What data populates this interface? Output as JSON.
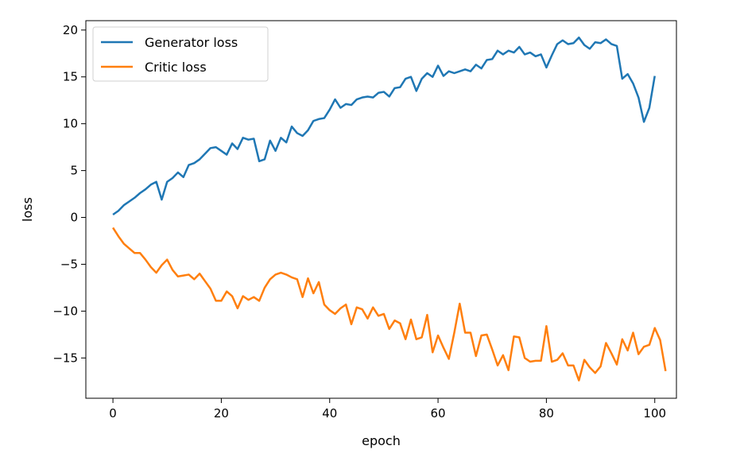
{
  "chart_data": {
    "type": "line",
    "xlabel": "epoch",
    "ylabel": "loss",
    "xlim": [
      -5,
      104
    ],
    "ylim": [
      -19.3,
      21
    ],
    "xticks": [
      0,
      20,
      40,
      60,
      80,
      100
    ],
    "yticks": [
      20,
      15,
      10,
      5,
      0,
      -5,
      -10,
      -15
    ],
    "xtick_labels": [
      "0",
      "20",
      "40",
      "60",
      "80",
      "100"
    ],
    "ytick_labels": [
      "20",
      "15",
      "10",
      "5",
      "0",
      "−5",
      "−10",
      "−15"
    ],
    "grid": false,
    "legend_position": "top-left",
    "series": [
      {
        "name": "Generator loss",
        "color": "#1f77b4",
        "values": [
          0.3,
          0.7,
          1.3,
          1.7,
          2.1,
          2.6,
          3.0,
          3.5,
          3.8,
          1.9,
          3.8,
          4.2,
          4.8,
          4.3,
          5.6,
          5.8,
          6.2,
          6.8,
          7.4,
          7.5,
          7.1,
          6.7,
          7.9,
          7.3,
          8.5,
          8.3,
          8.4,
          6.0,
          6.2,
          8.2,
          7.1,
          8.5,
          8.0,
          9.7,
          9.0,
          8.7,
          9.3,
          10.3,
          10.5,
          10.6,
          11.5,
          12.6,
          11.7,
          12.1,
          12.0,
          12.6,
          12.8,
          12.9,
          12.8,
          13.3,
          13.4,
          12.9,
          13.8,
          13.9,
          14.8,
          15.0,
          13.5,
          14.8,
          15.4,
          15.0,
          16.2,
          15.1,
          15.6,
          15.4,
          15.6,
          15.8,
          15.6,
          16.3,
          15.9,
          16.8,
          16.9,
          17.8,
          17.4,
          17.8,
          17.6,
          18.2,
          17.4,
          17.6,
          17.2,
          17.4,
          16.0,
          17.3,
          18.5,
          18.9,
          18.5,
          18.6,
          19.2,
          18.4,
          18.0,
          18.7,
          18.6,
          19.0,
          18.5,
          18.3,
          14.8,
          15.3,
          14.3,
          12.8,
          10.2,
          11.7,
          15.1
        ]
      },
      {
        "name": "Critic loss",
        "color": "#ff7f0e",
        "values": [
          -1.1,
          -2.0,
          -2.8,
          -3.3,
          -3.8,
          -3.8,
          -4.5,
          -5.3,
          -5.9,
          -5.1,
          -4.5,
          -5.6,
          -6.3,
          -6.2,
          -6.1,
          -6.6,
          -6.0,
          -6.8,
          -7.6,
          -8.9,
          -8.9,
          -7.9,
          -8.4,
          -9.7,
          -8.4,
          -8.8,
          -8.5,
          -8.9,
          -7.5,
          -6.6,
          -6.1,
          -5.9,
          -6.1,
          -6.4,
          -6.6,
          -8.5,
          -6.5,
          -8.1,
          -6.9,
          -9.3,
          -9.9,
          -10.3,
          -9.7,
          -9.3,
          -11.4,
          -9.6,
          -9.8,
          -10.8,
          -9.6,
          -10.5,
          -10.3,
          -11.9,
          -11.0,
          -11.3,
          -13.0,
          -10.9,
          -13.0,
          -12.8,
          -10.4,
          -14.4,
          -12.6,
          -13.9,
          -15.1,
          -12.3,
          -9.2,
          -12.3,
          -12.3,
          -14.8,
          -12.6,
          -12.5,
          -14.1,
          -15.8,
          -14.7,
          -16.3,
          -12.7,
          -12.8,
          -15.0,
          -15.4,
          -15.3,
          -15.3,
          -11.6,
          -15.4,
          -15.2,
          -14.5,
          -15.8,
          -15.8,
          -17.4,
          -15.2,
          -16.0,
          -16.6,
          -15.9,
          -13.4,
          -14.5,
          -15.7,
          -13.0,
          -14.2,
          -12.3,
          -14.6,
          -13.8,
          -13.6,
          -11.8,
          -13.1,
          -16.4
        ]
      }
    ]
  }
}
